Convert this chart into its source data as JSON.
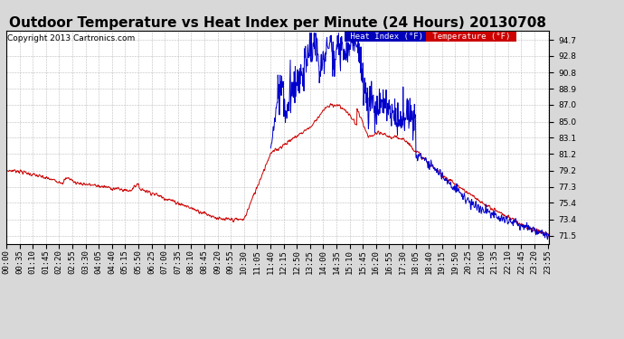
{
  "title": "Outdoor Temperature vs Heat Index per Minute (24 Hours) 20130708",
  "copyright": "Copyright 2013 Cartronics.com",
  "legend_heat": "Heat Index (°F)",
  "legend_temp": "Temperature (°F)",
  "y_ticks": [
    71.5,
    73.4,
    75.4,
    77.3,
    79.2,
    81.2,
    83.1,
    85.0,
    87.0,
    88.9,
    90.8,
    92.8,
    94.7
  ],
  "ylim_min": 70.5,
  "ylim_max": 95.8,
  "plot_bg_color": "#ffffff",
  "fig_bg_color": "#d8d8d8",
  "temp_color": "#cc0000",
  "heat_color": "#0000cc",
  "grid_color": "#aaaaaa",
  "title_fontsize": 11,
  "tick_fontsize": 6.5,
  "copyright_fontsize": 6.5
}
